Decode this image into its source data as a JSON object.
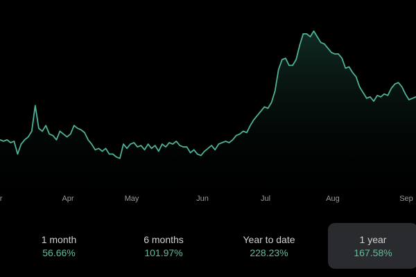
{
  "colors": {
    "accent": "#5fbf9a",
    "line": "#4fb39a",
    "selected_bg": "#2a2b2f"
  },
  "chart_data": {
    "type": "area",
    "x_labels": [
      "Mar",
      "Apr",
      "May",
      "Jun",
      "Jul",
      "Aug",
      "Sep"
    ],
    "values": [
      0.36,
      0.355,
      0.36,
      0.35,
      0.355,
      0.31,
      0.345,
      0.36,
      0.37,
      0.39,
      0.48,
      0.4,
      0.39,
      0.41,
      0.38,
      0.375,
      0.36,
      0.39,
      0.38,
      0.37,
      0.38,
      0.41,
      0.4,
      0.395,
      0.385,
      0.36,
      0.345,
      0.325,
      0.33,
      0.32,
      0.33,
      0.31,
      0.31,
      0.3,
      0.295,
      0.345,
      0.33,
      0.345,
      0.35,
      0.335,
      0.34,
      0.325,
      0.345,
      0.33,
      0.34,
      0.32,
      0.345,
      0.335,
      0.35,
      0.345,
      0.355,
      0.34,
      0.335,
      0.335,
      0.315,
      0.325,
      0.31,
      0.305,
      0.32,
      0.33,
      0.34,
      0.325,
      0.345,
      0.35,
      0.355,
      0.35,
      0.36,
      0.375,
      0.38,
      0.39,
      0.385,
      0.41,
      0.43,
      0.445,
      0.46,
      0.475,
      0.47,
      0.49,
      0.53,
      0.605,
      0.64,
      0.645,
      0.62,
      0.62,
      0.64,
      0.69,
      0.73,
      0.73,
      0.72,
      0.74,
      0.72,
      0.7,
      0.695,
      0.68,
      0.665,
      0.66,
      0.66,
      0.645,
      0.61,
      0.615,
      0.595,
      0.58,
      0.545,
      0.525,
      0.505,
      0.51,
      0.495,
      0.515,
      0.51,
      0.52,
      0.515,
      0.54,
      0.555,
      0.56,
      0.545,
      0.52,
      0.5,
      0.505,
      0.51
    ],
    "ylim": [
      0.2,
      0.8
    ],
    "grid": false
  },
  "periods": [
    {
      "label": "1 month",
      "value": "56.66%",
      "selected": false
    },
    {
      "label": "6 months",
      "value": "101.97%",
      "selected": false
    },
    {
      "label": "Year to date",
      "value": "228.23%",
      "selected": false
    },
    {
      "label": "1 year",
      "value": "167.58%",
      "selected": true
    }
  ]
}
